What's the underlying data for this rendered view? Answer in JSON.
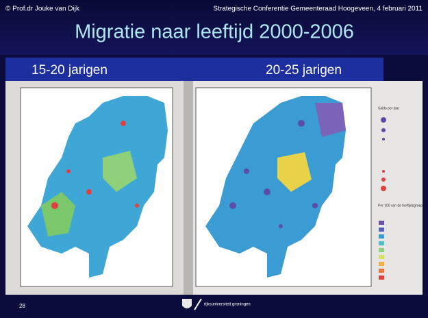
{
  "header": {
    "author": "© Prof.dr Jouke van Dijk",
    "event": "Strategische Conferentie Gemeenteraad Hoogeveen, 4 februari 2011",
    "title": "Migratie naar leeftijd 2000-2006"
  },
  "panels": [
    {
      "label": "15-20 jarigen"
    },
    {
      "label": "20-25 jarigen"
    }
  ],
  "legend": {
    "title": "Saldo per jaar",
    "subtitle": "Per 100 van de leeftijdsgroep"
  },
  "footer": {
    "page": "28",
    "logo": "rijksuniversiteit groningen"
  }
}
